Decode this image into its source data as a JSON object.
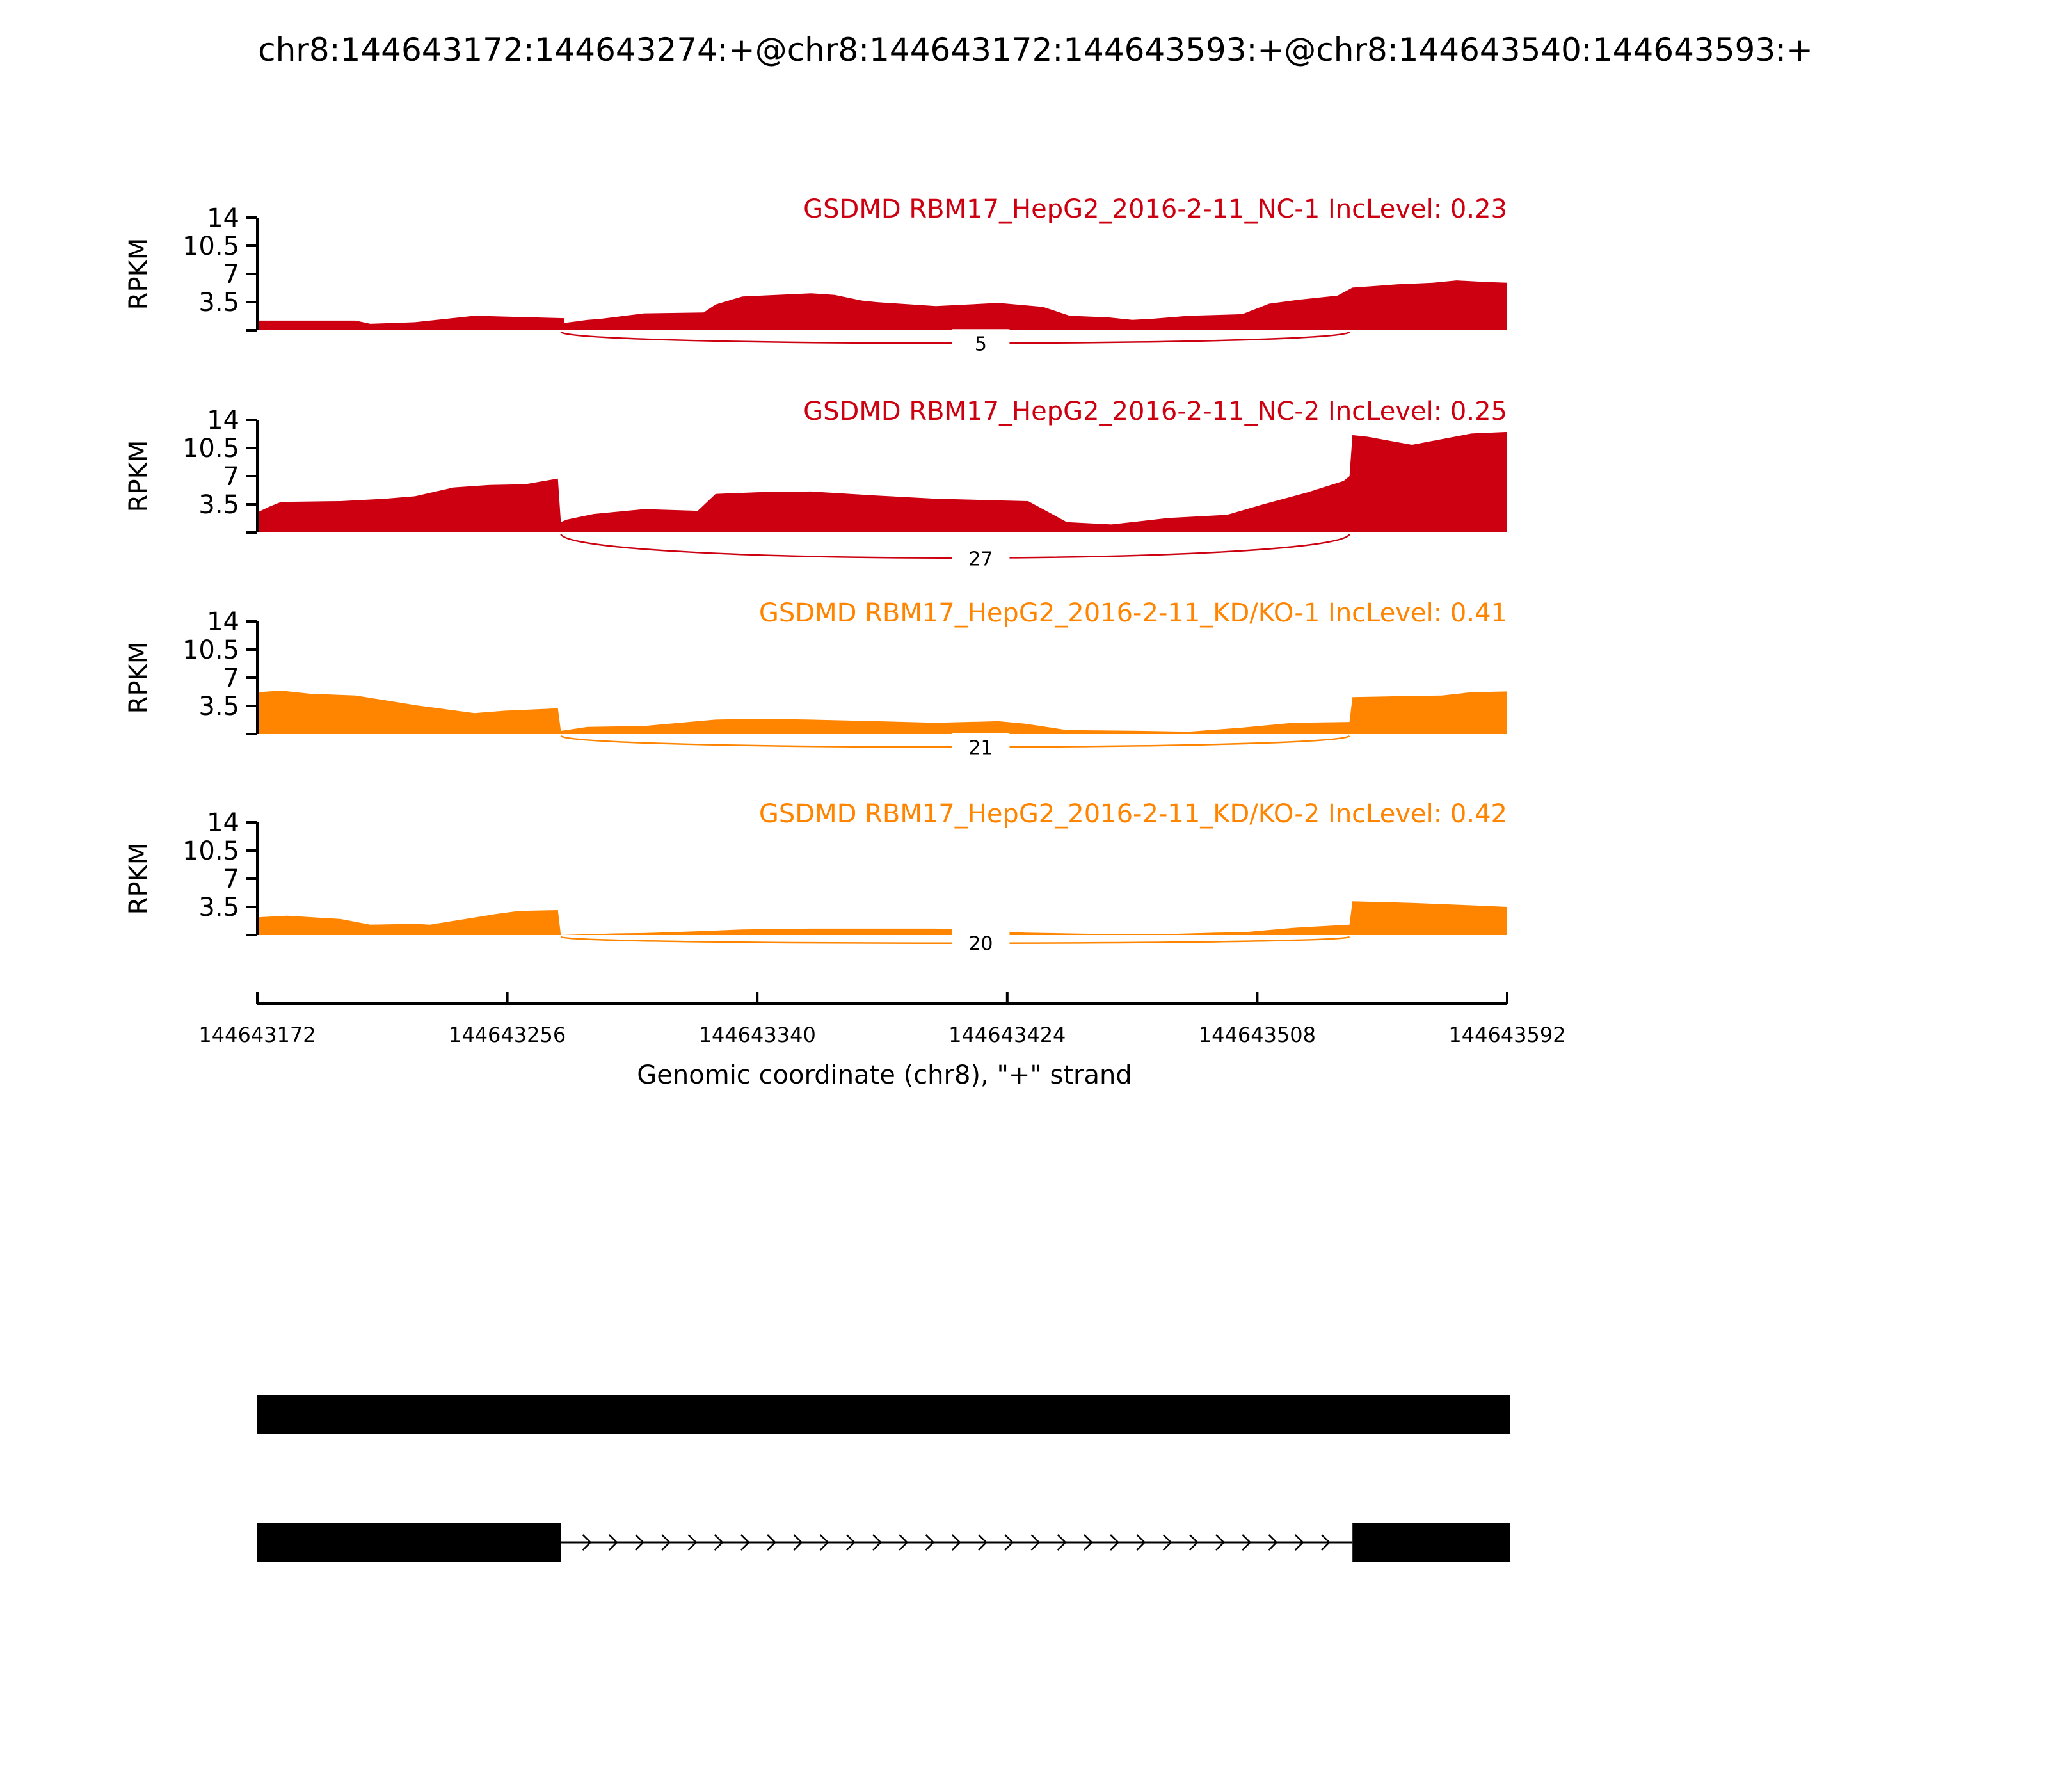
{
  "colors": {
    "nc": "#cc0010",
    "kd": "#ff8400",
    "axis": "#000000",
    "gene_model": "#000000"
  },
  "chart_data": {
    "type": "area",
    "title": "chr8:144643172:144643274:+@chr8:144643172:144643593:+@chr8:144643540:144643593:+",
    "xlabel": "Genomic coordinate (chr8), \"+\" strand",
    "ylabel": "RPKM",
    "xlim": [
      144643172,
      144643592
    ],
    "ylim": [
      0,
      14
    ],
    "yticks": [
      "3.5",
      "7",
      "10.5",
      "14"
    ],
    "xticks": [
      "144643172",
      "144643256",
      "144643340",
      "144643424",
      "144643508",
      "144643592"
    ],
    "grid": false,
    "series": [
      {
        "name": "GSDMD RBM17_HepG2_2016-2-11_NC-1 IncLevel: 0.23",
        "group": "nc",
        "junction_count": "5",
        "x": [
          144643172,
          144643205,
          144643210,
          144643225,
          144643245,
          144643255,
          144643275,
          144643275,
          144643283,
          144643287,
          144643302,
          144643322,
          144643326,
          144643335,
          144643358,
          144643366,
          144643375,
          144643380,
          144643400,
          144643421,
          144643436,
          144643445,
          144643458,
          144643466,
          144643472,
          144643485,
          144643503,
          144643512,
          144643522,
          144643535,
          144643540,
          144643555,
          144643567,
          144643575,
          144643585,
          144643592
        ],
        "y": [
          1.2,
          1.2,
          0.8,
          1.0,
          1.8,
          1.7,
          1.5,
          0.9,
          1.3,
          1.4,
          2.1,
          2.2,
          3.2,
          4.2,
          4.6,
          4.4,
          3.7,
          3.5,
          3.0,
          3.4,
          2.9,
          1.8,
          1.6,
          1.3,
          1.4,
          1.8,
          2.0,
          3.3,
          3.8,
          4.3,
          5.3,
          5.7,
          5.9,
          6.2,
          6.0,
          5.9
        ]
      },
      {
        "name": "GSDMD RBM17_HepG2_2016-2-11_NC-2 IncLevel: 0.25",
        "group": "nc",
        "junction_count": "27",
        "x": [
          144643172,
          144643176,
          144643180,
          144643200,
          144643215,
          144643225,
          144643238,
          144643250,
          144643262,
          144643273,
          144643274,
          144643276,
          144643285,
          144643302,
          144643320,
          144643326,
          144643340,
          144643358,
          144643380,
          144643400,
          144643420,
          144643431,
          144643444,
          144643459,
          144643478,
          144643498,
          144643510,
          144643525,
          144643537,
          144643539,
          144643540,
          144643545,
          144643560,
          144643580,
          144643592
        ],
        "y": [
          2.5,
          3.2,
          3.8,
          3.9,
          4.2,
          4.5,
          5.6,
          5.9,
          6.0,
          6.7,
          1.3,
          1.6,
          2.3,
          2.9,
          2.7,
          4.8,
          5.0,
          5.1,
          4.6,
          4.2,
          4.0,
          3.9,
          1.3,
          1.0,
          1.8,
          2.2,
          3.5,
          5.0,
          6.4,
          7.0,
          12.1,
          11.9,
          10.9,
          12.3,
          12.5
        ]
      },
      {
        "name": "GSDMD RBM17_HepG2_2016-2-11_KD/KO-1 IncLevel: 0.41",
        "group": "kd",
        "junction_count": "21",
        "x": [
          144643172,
          144643180,
          144643190,
          144643205,
          144643225,
          144643245,
          144643255,
          144643273,
          144643274,
          144643283,
          144643302,
          144643326,
          144643340,
          144643358,
          144643380,
          144643400,
          144643421,
          144643430,
          144643444,
          144643470,
          144643485,
          144643503,
          144643520,
          144643539,
          144643540,
          144643555,
          144643570,
          144643580,
          144643592
        ],
        "y": [
          5.2,
          5.4,
          5.0,
          4.8,
          3.6,
          2.6,
          2.9,
          3.2,
          0.4,
          0.9,
          1.0,
          1.8,
          1.9,
          1.8,
          1.6,
          1.4,
          1.6,
          1.3,
          0.5,
          0.4,
          0.3,
          0.8,
          1.4,
          1.5,
          4.6,
          4.7,
          4.8,
          5.2,
          5.3
        ]
      },
      {
        "name": "GSDMD RBM17_HepG2_2016-2-11_KD/KO-2 IncLevel: 0.42",
        "group": "kd",
        "junction_count": "20",
        "x": [
          144643172,
          144643182,
          144643200,
          144643210,
          144643225,
          144643230,
          144643252,
          144643260,
          144643273,
          144643274,
          144643292,
          144643302,
          144643322,
          144643335,
          144643358,
          144643380,
          144643400,
          144643421,
          144643430,
          144643460,
          144643480,
          144643505,
          144643520,
          144643539,
          144643540,
          144643560,
          144643580,
          144643592
        ],
        "y": [
          2.2,
          2.4,
          2.0,
          1.3,
          1.4,
          1.3,
          2.6,
          3.0,
          3.1,
          0.0,
          0.2,
          0.25,
          0.5,
          0.7,
          0.8,
          0.8,
          0.8,
          0.5,
          0.3,
          0.1,
          0.15,
          0.4,
          0.9,
          1.3,
          4.2,
          4.0,
          3.7,
          3.5
        ]
      }
    ],
    "junction": {
      "start": 144643274,
      "end": 144643539
    },
    "gene_model": {
      "isoforms": [
        {
          "name": "inclusion",
          "exons": [
            [
              144643172,
              144643593
            ]
          ]
        },
        {
          "name": "skipping",
          "exons": [
            [
              144643172,
              144643274
            ],
            [
              144643540,
              144643593
            ]
          ]
        }
      ]
    }
  }
}
